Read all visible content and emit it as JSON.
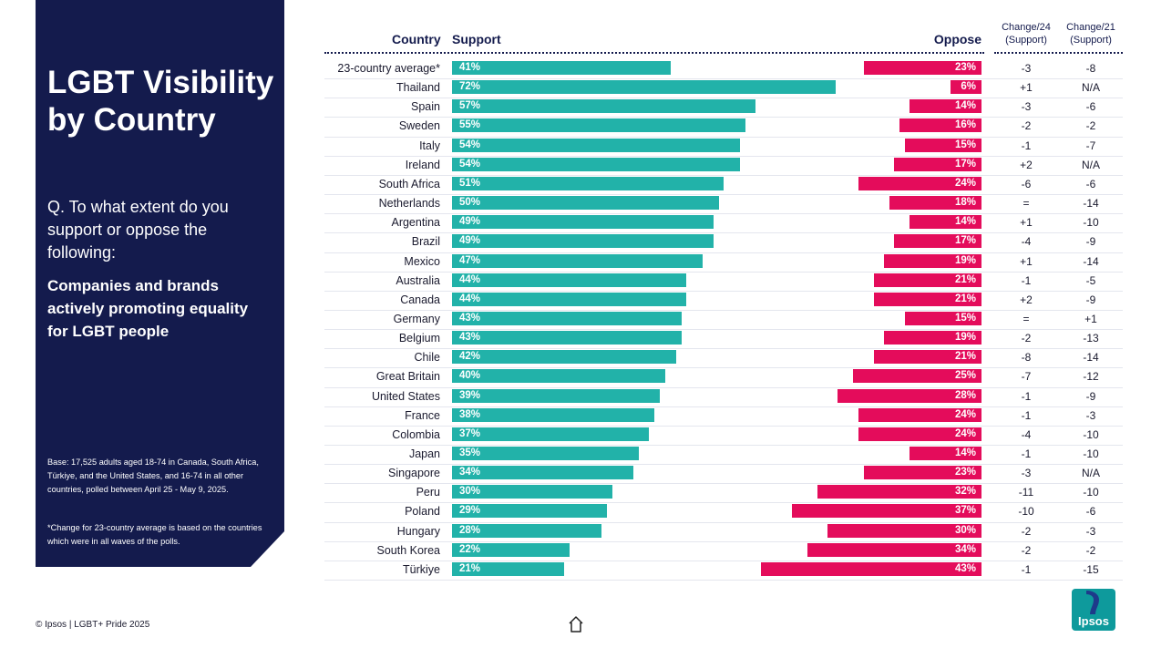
{
  "sidebar": {
    "title": "LGBT Visibility by Country",
    "question": "Q. To what extent do you support or oppose the following:",
    "statement": "Companies and brands actively promoting equality for LGBT people",
    "base": "Base: 17,525 adults aged 18-74 in Canada, South Africa, Türkiye, and the United States, and 16-74 in all other countries, polled between April 25 - May 9, 2025.",
    "note": "*Change for 23-country average is based on the countries which were in all waves of the polls."
  },
  "footer": {
    "copyright": "© Ipsos | LGBT+ Pride 2025",
    "logo_text": "Ipsos"
  },
  "colors": {
    "support": "#22b2a9",
    "oppose": "#e40c5b",
    "navy": "#141b4d"
  },
  "chart_data": {
    "type": "bar",
    "title": "LGBT Visibility by Country",
    "headers": {
      "country": "Country",
      "support": "Support",
      "oppose": "Oppose",
      "change24": "Change/24 (Support)",
      "change21": "Change/21 (Support)"
    },
    "series": [
      {
        "name": "Support",
        "color": "#22b2a9"
      },
      {
        "name": "Oppose",
        "color": "#e40c5b"
      }
    ],
    "rows": [
      {
        "country": "23-country average*",
        "support": 41,
        "oppose": 23,
        "change24": "-3",
        "change21": "-8"
      },
      {
        "country": "Thailand",
        "support": 72,
        "oppose": 6,
        "change24": "+1",
        "change21": "N/A"
      },
      {
        "country": "Spain",
        "support": 57,
        "oppose": 14,
        "change24": "-3",
        "change21": "-6"
      },
      {
        "country": "Sweden",
        "support": 55,
        "oppose": 16,
        "change24": "-2",
        "change21": "-2"
      },
      {
        "country": "Italy",
        "support": 54,
        "oppose": 15,
        "change24": "-1",
        "change21": "-7"
      },
      {
        "country": "Ireland",
        "support": 54,
        "oppose": 17,
        "change24": "+2",
        "change21": "N/A"
      },
      {
        "country": "South Africa",
        "support": 51,
        "oppose": 24,
        "change24": "-6",
        "change21": "-6"
      },
      {
        "country": "Netherlands",
        "support": 50,
        "oppose": 18,
        "change24": "=",
        "change21": "-14"
      },
      {
        "country": "Argentina",
        "support": 49,
        "oppose": 14,
        "change24": "+1",
        "change21": "-10"
      },
      {
        "country": "Brazil",
        "support": 49,
        "oppose": 17,
        "change24": "-4",
        "change21": "-9"
      },
      {
        "country": "Mexico",
        "support": 47,
        "oppose": 19,
        "change24": "+1",
        "change21": "-14"
      },
      {
        "country": "Australia",
        "support": 44,
        "oppose": 21,
        "change24": "-1",
        "change21": "-5"
      },
      {
        "country": "Canada",
        "support": 44,
        "oppose": 21,
        "change24": "+2",
        "change21": "-9"
      },
      {
        "country": "Germany",
        "support": 43,
        "oppose": 15,
        "change24": "=",
        "change21": "+1"
      },
      {
        "country": "Belgium",
        "support": 43,
        "oppose": 19,
        "change24": "-2",
        "change21": "-13"
      },
      {
        "country": "Chile",
        "support": 42,
        "oppose": 21,
        "change24": "-8",
        "change21": "-14"
      },
      {
        "country": "Great Britain",
        "support": 40,
        "oppose": 25,
        "change24": "-7",
        "change21": "-12"
      },
      {
        "country": "United States",
        "support": 39,
        "oppose": 28,
        "change24": "-1",
        "change21": "-9"
      },
      {
        "country": "France",
        "support": 38,
        "oppose": 24,
        "change24": "-1",
        "change21": "-3"
      },
      {
        "country": "Colombia",
        "support": 37,
        "oppose": 24,
        "change24": "-4",
        "change21": "-10"
      },
      {
        "country": "Japan",
        "support": 35,
        "oppose": 14,
        "change24": "-1",
        "change21": "-10"
      },
      {
        "country": "Singapore",
        "support": 34,
        "oppose": 23,
        "change24": "-3",
        "change21": "N/A"
      },
      {
        "country": "Peru",
        "support": 30,
        "oppose": 32,
        "change24": "-11",
        "change21": "-10"
      },
      {
        "country": "Poland",
        "support": 29,
        "oppose": 37,
        "change24": "-10",
        "change21": "-6"
      },
      {
        "country": "Hungary",
        "support": 28,
        "oppose": 30,
        "change24": "-2",
        "change21": "-3"
      },
      {
        "country": "South Korea",
        "support": 22,
        "oppose": 34,
        "change24": "-2",
        "change21": "-2"
      },
      {
        "country": "Türkiye",
        "support": 21,
        "oppose": 43,
        "change24": "-1",
        "change21": "-15"
      }
    ]
  }
}
